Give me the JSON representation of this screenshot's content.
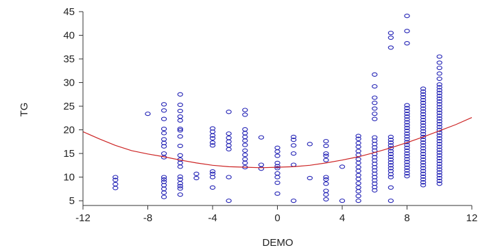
{
  "chart_data": {
    "type": "scatter",
    "title": "",
    "xlabel": "DEMO",
    "ylabel": "TG",
    "xlim": [
      -12,
      12
    ],
    "ylim": [
      4,
      45
    ],
    "xticks": [
      -12,
      -8,
      -4,
      0,
      4,
      8,
      12
    ],
    "xtick_labels": [
      "-12",
      "-8",
      "-4",
      "0",
      "4",
      "8",
      "12"
    ],
    "yticks": [
      5,
      10,
      15,
      20,
      25,
      30,
      35,
      40,
      45
    ],
    "ytick_labels": [
      "5",
      "10",
      "15",
      "20",
      "25",
      "30",
      "35",
      "40",
      "45"
    ],
    "grid": false,
    "marker": "open-circle",
    "point_color": "#1f1fb4",
    "fit_color": "#cc2222",
    "series": [
      {
        "type": "scatter",
        "points": [
          [
            -10,
            7.7
          ],
          [
            -10,
            8.5
          ],
          [
            -10,
            9.4
          ],
          [
            -10,
            10.0
          ],
          [
            -8,
            23.4
          ],
          [
            -7,
            5.8
          ],
          [
            -7,
            6.7
          ],
          [
            -7,
            7.5
          ],
          [
            -7,
            8.3
          ],
          [
            -7,
            9.0
          ],
          [
            -7,
            9.5
          ],
          [
            -7,
            10.0
          ],
          [
            -7,
            14.2
          ],
          [
            -7,
            15.0
          ],
          [
            -7,
            16.5
          ],
          [
            -7,
            17.2
          ],
          [
            -7,
            18.0
          ],
          [
            -7,
            19.3
          ],
          [
            -7,
            20.2
          ],
          [
            -7,
            22.3
          ],
          [
            -7,
            24.1
          ],
          [
            -7,
            25.4
          ],
          [
            -6,
            6.3
          ],
          [
            -6,
            7.6
          ],
          [
            -6,
            8.1
          ],
          [
            -6,
            8.7
          ],
          [
            -6,
            9.5
          ],
          [
            -6,
            10.1
          ],
          [
            -6,
            12.2
          ],
          [
            -6,
            13.0
          ],
          [
            -6,
            13.7
          ],
          [
            -6,
            14.6
          ],
          [
            -6,
            16.6
          ],
          [
            -6,
            18.6
          ],
          [
            -6,
            19.9
          ],
          [
            -6,
            20.2
          ],
          [
            -6,
            22.0
          ],
          [
            -6,
            22.8
          ],
          [
            -6,
            24.0
          ],
          [
            -6,
            25.3
          ],
          [
            -6,
            27.5
          ],
          [
            -5,
            9.8
          ],
          [
            -5,
            10.7
          ],
          [
            -4,
            7.8
          ],
          [
            -4,
            10.0
          ],
          [
            -4,
            10.7
          ],
          [
            -4,
            11.2
          ],
          [
            -4,
            16.7
          ],
          [
            -4,
            17.3
          ],
          [
            -4,
            18.2
          ],
          [
            -4,
            18.8
          ],
          [
            -4,
            19.6
          ],
          [
            -4,
            20.3
          ],
          [
            -3,
            5.0
          ],
          [
            -3,
            10.0
          ],
          [
            -3,
            15.9
          ],
          [
            -3,
            16.7
          ],
          [
            -3,
            17.5
          ],
          [
            -3,
            18.3
          ],
          [
            -3,
            19.2
          ],
          [
            -3,
            23.8
          ],
          [
            -2,
            12.1
          ],
          [
            -2,
            13.0
          ],
          [
            -2,
            13.8
          ],
          [
            -2,
            14.7
          ],
          [
            -2,
            15.6
          ],
          [
            -2,
            16.8
          ],
          [
            -2,
            17.7
          ],
          [
            -2,
            18.5
          ],
          [
            -2,
            19.3
          ],
          [
            -2,
            20.1
          ],
          [
            -2,
            23.2
          ],
          [
            -2,
            24.2
          ],
          [
            -1,
            11.8
          ],
          [
            -1,
            12.6
          ],
          [
            -1,
            18.4
          ],
          [
            0,
            6.5
          ],
          [
            0,
            8.8
          ],
          [
            0,
            10.0
          ],
          [
            0,
            10.8
          ],
          [
            0,
            11.9
          ],
          [
            0,
            12.3
          ],
          [
            0,
            13.0
          ],
          [
            0,
            14.5
          ],
          [
            0,
            15.4
          ],
          [
            0,
            16.2
          ],
          [
            1,
            5.0
          ],
          [
            1,
            12.6
          ],
          [
            1,
            15.0
          ],
          [
            1,
            16.7
          ],
          [
            1,
            17.9
          ],
          [
            1,
            18.5
          ],
          [
            2,
            9.8
          ],
          [
            2,
            17.0
          ],
          [
            3,
            5.3
          ],
          [
            3,
            6.3
          ],
          [
            3,
            7.1
          ],
          [
            3,
            8.6
          ],
          [
            3,
            9.5
          ],
          [
            3,
            10.0
          ],
          [
            3,
            13.6
          ],
          [
            3,
            14.5
          ],
          [
            3,
            15.0
          ],
          [
            3,
            16.6
          ],
          [
            3,
            17.6
          ],
          [
            4,
            5.0
          ],
          [
            4,
            12.2
          ],
          [
            5,
            5.0
          ],
          [
            5,
            6.0
          ],
          [
            5,
            7.0
          ],
          [
            5,
            7.8
          ],
          [
            5,
            8.7
          ],
          [
            5,
            9.6
          ],
          [
            5,
            10.4
          ],
          [
            5,
            11.3
          ],
          [
            5,
            12.1
          ],
          [
            5,
            13.0
          ],
          [
            5,
            13.8
          ],
          [
            5,
            14.7
          ],
          [
            5,
            15.5
          ],
          [
            5,
            16.4
          ],
          [
            5,
            17.2
          ],
          [
            5,
            18.1
          ],
          [
            5,
            18.7
          ],
          [
            6,
            7.2
          ],
          [
            6,
            7.9
          ],
          [
            6,
            8.6
          ],
          [
            6,
            9.3
          ],
          [
            6,
            10.0
          ],
          [
            6,
            10.7
          ],
          [
            6,
            11.4
          ],
          [
            6,
            12.1
          ],
          [
            6,
            12.8
          ],
          [
            6,
            13.5
          ],
          [
            6,
            14.2
          ],
          [
            6,
            14.9
          ],
          [
            6,
            15.6
          ],
          [
            6,
            16.3
          ],
          [
            6,
            17.0
          ],
          [
            6,
            17.7
          ],
          [
            6,
            18.4
          ],
          [
            6,
            22.3
          ],
          [
            6,
            23.4
          ],
          [
            6,
            24.5
          ],
          [
            6,
            25.7
          ],
          [
            6,
            26.8
          ],
          [
            6,
            29.2
          ],
          [
            6,
            31.7
          ],
          [
            7,
            5.0
          ],
          [
            7,
            7.8
          ],
          [
            7,
            10.0
          ],
          [
            7,
            10.6
          ],
          [
            7,
            11.3
          ],
          [
            7,
            11.9
          ],
          [
            7,
            12.5
          ],
          [
            7,
            13.1
          ],
          [
            7,
            13.7
          ],
          [
            7,
            14.3
          ],
          [
            7,
            14.9
          ],
          [
            7,
            15.5
          ],
          [
            7,
            16.1
          ],
          [
            7,
            16.7
          ],
          [
            7,
            17.3
          ],
          [
            7,
            17.9
          ],
          [
            7,
            18.5
          ],
          [
            7,
            37.4
          ],
          [
            7,
            39.5
          ],
          [
            7,
            40.5
          ],
          [
            8,
            10.2
          ],
          [
            8,
            10.8
          ],
          [
            8,
            11.4
          ],
          [
            8,
            12.0
          ],
          [
            8,
            12.6
          ],
          [
            8,
            13.2
          ],
          [
            8,
            13.8
          ],
          [
            8,
            14.4
          ],
          [
            8,
            15.0
          ],
          [
            8,
            15.6
          ],
          [
            8,
            16.2
          ],
          [
            8,
            16.8
          ],
          [
            8,
            17.4
          ],
          [
            8,
            18.0
          ],
          [
            8,
            18.6
          ],
          [
            8,
            19.2
          ],
          [
            8,
            19.8
          ],
          [
            8,
            20.4
          ],
          [
            8,
            21.0
          ],
          [
            8,
            21.6
          ],
          [
            8,
            22.2
          ],
          [
            8,
            22.8
          ],
          [
            8,
            23.4
          ],
          [
            8,
            24.0
          ],
          [
            8,
            24.6
          ],
          [
            8,
            25.2
          ],
          [
            8,
            38.3
          ],
          [
            8,
            40.9
          ],
          [
            8,
            44.1
          ],
          [
            9,
            8.3
          ],
          [
            9,
            8.9
          ],
          [
            9,
            9.5
          ],
          [
            9,
            10.1
          ],
          [
            9,
            10.7
          ],
          [
            9,
            11.3
          ],
          [
            9,
            11.9
          ],
          [
            9,
            12.5
          ],
          [
            9,
            13.1
          ],
          [
            9,
            13.7
          ],
          [
            9,
            14.3
          ],
          [
            9,
            14.9
          ],
          [
            9,
            15.5
          ],
          [
            9,
            16.1
          ],
          [
            9,
            16.7
          ],
          [
            9,
            17.3
          ],
          [
            9,
            17.9
          ],
          [
            9,
            18.5
          ],
          [
            9,
            19.1
          ],
          [
            9,
            19.7
          ],
          [
            9,
            20.3
          ],
          [
            9,
            20.9
          ],
          [
            9,
            21.5
          ],
          [
            9,
            22.1
          ],
          [
            9,
            22.7
          ],
          [
            9,
            23.3
          ],
          [
            9,
            23.9
          ],
          [
            9,
            24.5
          ],
          [
            9,
            25.1
          ],
          [
            9,
            25.7
          ],
          [
            9,
            26.3
          ],
          [
            9,
            26.9
          ],
          [
            9,
            27.5
          ],
          [
            9,
            28.1
          ],
          [
            9,
            28.7
          ],
          [
            10,
            8.6
          ],
          [
            10,
            9.2
          ],
          [
            10,
            9.8
          ],
          [
            10,
            10.4
          ],
          [
            10,
            11.0
          ],
          [
            10,
            11.6
          ],
          [
            10,
            12.2
          ],
          [
            10,
            12.8
          ],
          [
            10,
            13.4
          ],
          [
            10,
            14.0
          ],
          [
            10,
            14.6
          ],
          [
            10,
            15.2
          ],
          [
            10,
            15.8
          ],
          [
            10,
            16.4
          ],
          [
            10,
            17.0
          ],
          [
            10,
            17.6
          ],
          [
            10,
            18.2
          ],
          [
            10,
            18.8
          ],
          [
            10,
            19.4
          ],
          [
            10,
            20.0
          ],
          [
            10,
            20.6
          ],
          [
            10,
            21.2
          ],
          [
            10,
            21.8
          ],
          [
            10,
            22.4
          ],
          [
            10,
            23.0
          ],
          [
            10,
            23.6
          ],
          [
            10,
            24.2
          ],
          [
            10,
            24.8
          ],
          [
            10,
            25.4
          ],
          [
            10,
            26.0
          ],
          [
            10,
            26.6
          ],
          [
            10,
            27.2
          ],
          [
            10,
            27.8
          ],
          [
            10,
            28.4
          ],
          [
            10,
            29.0
          ],
          [
            10,
            29.6
          ],
          [
            10,
            30.8
          ],
          [
            10,
            31.9
          ],
          [
            10,
            33.1
          ],
          [
            10,
            34.2
          ],
          [
            10,
            35.5
          ]
        ]
      },
      {
        "type": "line",
        "fit": "quadratic",
        "points": [
          [
            -12,
            19.6
          ],
          [
            -11,
            18.1
          ],
          [
            -10,
            16.7
          ],
          [
            -9,
            15.6
          ],
          [
            -8,
            14.9
          ],
          [
            -7,
            14.3
          ],
          [
            -6,
            13.6
          ],
          [
            -5,
            13.0
          ],
          [
            -4,
            12.5
          ],
          [
            -3,
            12.2
          ],
          [
            -2,
            12.1
          ],
          [
            -1,
            12.0
          ],
          [
            0,
            12.1
          ],
          [
            1,
            12.2
          ],
          [
            2,
            12.5
          ],
          [
            3,
            13.0
          ],
          [
            4,
            13.6
          ],
          [
            5,
            14.3
          ],
          [
            6,
            15.2
          ],
          [
            7,
            16.2
          ],
          [
            8,
            17.3
          ],
          [
            9,
            18.5
          ],
          [
            10,
            19.8
          ],
          [
            11,
            21.1
          ],
          [
            12,
            22.6
          ]
        ]
      }
    ]
  }
}
